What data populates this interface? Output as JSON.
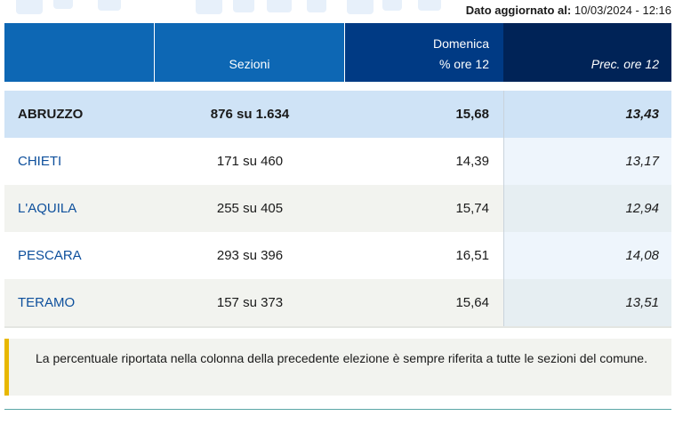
{
  "update": {
    "label": "Dato aggiornato al:",
    "value": "10/03/2024 - 12:16"
  },
  "header": {
    "col1": "",
    "col2": "Sezioni",
    "col3_line1": "Domenica",
    "col3_line2": "% ore 12",
    "col4": "Prec. ore 12"
  },
  "rows": [
    {
      "name": "ABRUZZO",
      "sezioni": "876 su 1.634",
      "pct": "15,68",
      "prev": "13,43"
    },
    {
      "name": "CHIETI",
      "sezioni": "171 su 460",
      "pct": "14,39",
      "prev": "13,17"
    },
    {
      "name": "L'AQUILA",
      "sezioni": "255 su 405",
      "pct": "15,74",
      "prev": "12,94"
    },
    {
      "name": "PESCARA",
      "sezioni": "293 su 396",
      "pct": "16,51",
      "prev": "14,08"
    },
    {
      "name": "TERAMO",
      "sezioni": "157 su 373",
      "pct": "15,64",
      "prev": "13,51"
    }
  ],
  "note": "La percentuale riportata nella colonna della precedente elezione è sempre riferita a tutte le sezioni del comune.",
  "colors": {
    "header_blue": "#0d67b4",
    "header_dark": "#003a84",
    "header_darkest": "#002357",
    "total_row": "#cfe3f6",
    "note_accent": "#e8b800"
  }
}
